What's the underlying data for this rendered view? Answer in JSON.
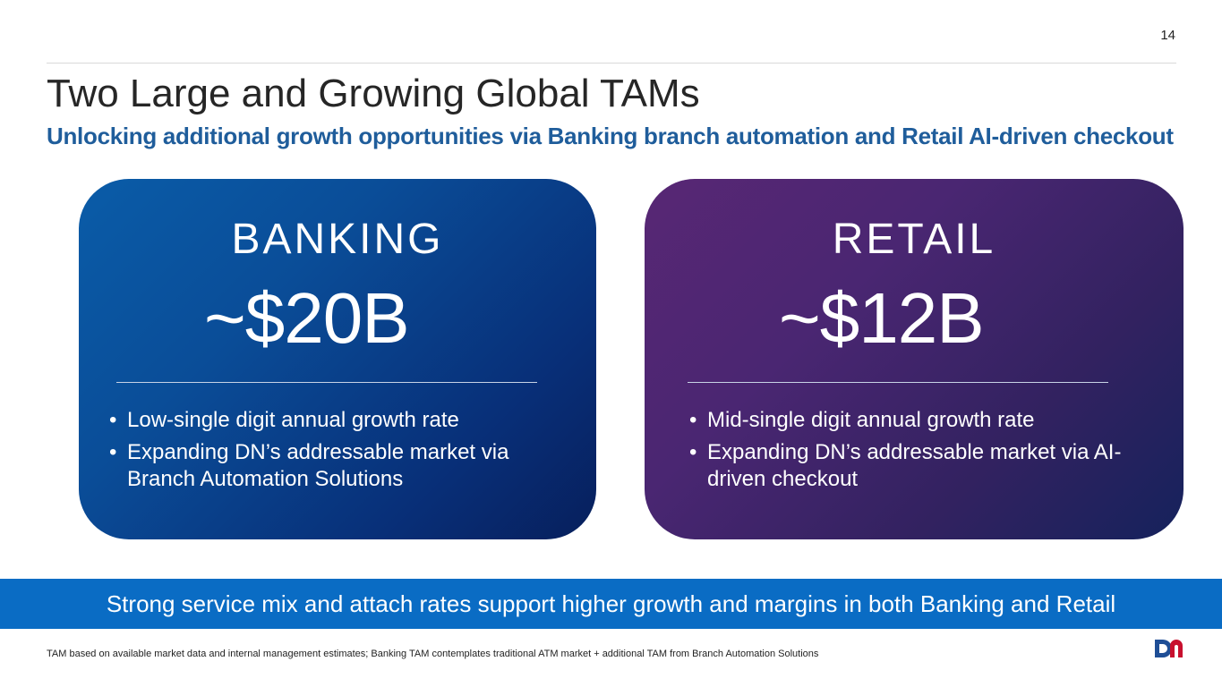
{
  "page_number": "14",
  "title": "Two Large and Growing Global TAMs",
  "subtitle": "Unlocking additional growth opportunities via Banking branch automation and Retail AI-driven checkout",
  "cards": [
    {
      "label": "BANKING",
      "value": "~$20B",
      "bullets": [
        "Low-single digit annual growth rate",
        "Expanding DN’s addressable market via Branch Automation Solutions"
      ]
    },
    {
      "label": "RETAIL",
      "value": "~$12B",
      "bullets": [
        "Mid-single digit annual growth rate",
        "Expanding DN’s addressable market via AI-driven checkout"
      ]
    }
  ],
  "bullet_symbol": "•",
  "banner": "Strong service mix and attach rates support higher growth and margins in both Banking and Retail",
  "footnote": "TAM based on available market data and internal management estimates; Banking TAM contemplates traditional ATM market + additional TAM from Branch Automation Solutions",
  "colors": {
    "title": "#262626",
    "subtitle": "#1f5d9b",
    "banner": "#0a6cc4",
    "logo_d": "#1f4e96",
    "logo_n": "#c8102e"
  }
}
